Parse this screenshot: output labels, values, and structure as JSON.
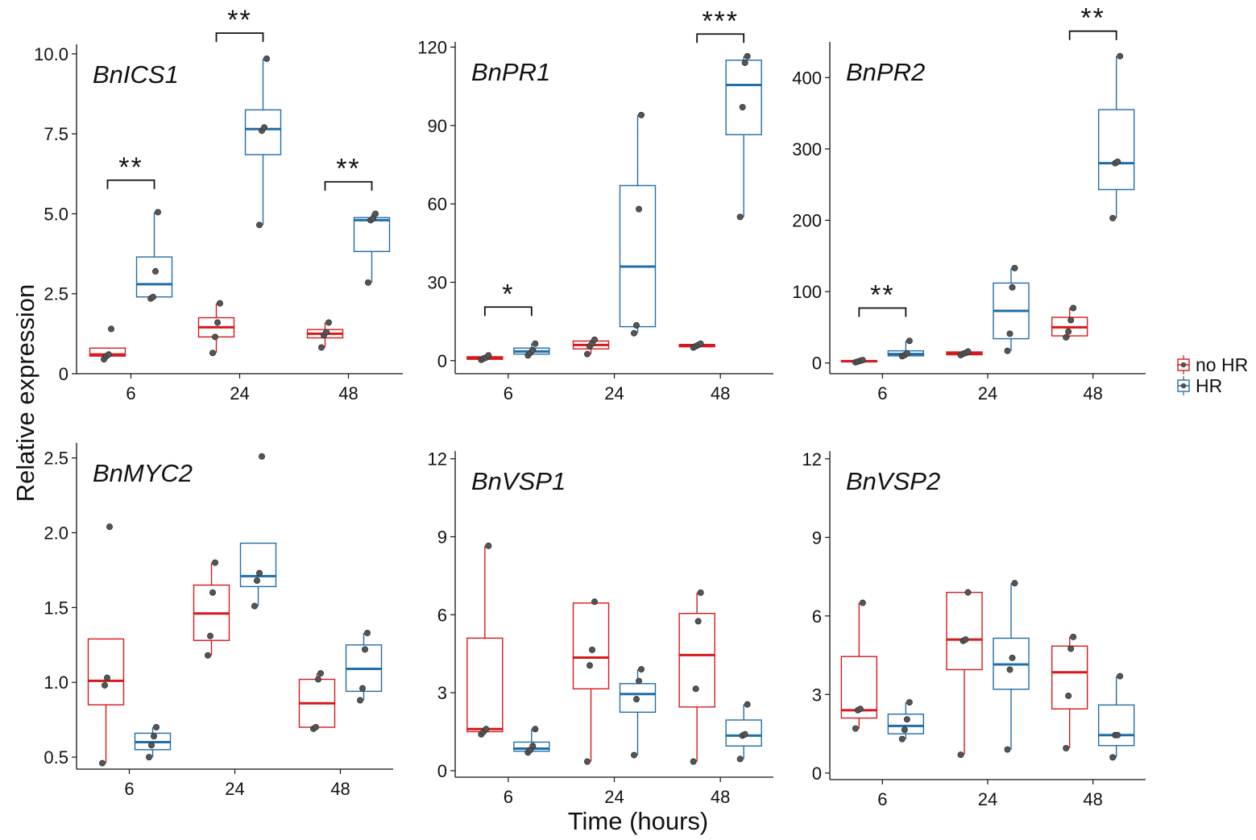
{
  "figure": {
    "ylabel": "Relative expression",
    "xlabel": "Time (hours)"
  },
  "colors": {
    "noHR": "#d7191c",
    "HR": "#1f6ea8",
    "point": "#555555"
  },
  "legend": {
    "items": [
      {
        "key": "noHR",
        "label": "no HR"
      },
      {
        "key": "HR",
        "label": "HR"
      }
    ]
  },
  "chart_data": [
    {
      "type": "box",
      "title": "BnICS1",
      "categories": [
        "6",
        "24",
        "48"
      ],
      "ylim": [
        0,
        10.3
      ],
      "yticks": [
        0,
        2.5,
        5.0,
        7.5,
        10.0
      ],
      "ytick_labels": [
        "0",
        "2.5",
        "5.0",
        "7.5",
        "10.0"
      ],
      "series": [
        {
          "name": "noHR",
          "boxes": [
            {
              "q1": 0.55,
              "median": 0.6,
              "q3": 0.8,
              "min": 0.45,
              "max": 0.8,
              "points": [
                0.45,
                0.55,
                0.6,
                1.4
              ]
            },
            {
              "q1": 1.15,
              "median": 1.45,
              "q3": 1.75,
              "min": 0.65,
              "max": 2.2,
              "points": [
                0.65,
                1.15,
                1.6,
                2.2
              ]
            },
            {
              "q1": 1.12,
              "median": 1.25,
              "q3": 1.38,
              "min": 0.82,
              "max": 1.6,
              "points": [
                0.82,
                1.2,
                1.3,
                1.6
              ]
            }
          ]
        },
        {
          "name": "HR",
          "boxes": [
            {
              "q1": 2.4,
              "median": 2.8,
              "q3": 3.65,
              "min": 2.35,
              "max": 5.05,
              "points": [
                2.35,
                2.4,
                3.2,
                5.05
              ]
            },
            {
              "q1": 6.85,
              "median": 7.65,
              "q3": 8.25,
              "min": 4.65,
              "max": 9.85,
              "points": [
                4.65,
                7.6,
                7.7,
                9.85
              ]
            },
            {
              "q1": 3.82,
              "median": 4.8,
              "q3": 4.88,
              "min": 2.85,
              "max": 5.0,
              "points": [
                2.85,
                4.8,
                4.85,
                5.0
              ]
            }
          ]
        }
      ],
      "significance": [
        {
          "category": "6",
          "label": "**",
          "y": 6.05
        },
        {
          "category": "24",
          "label": "**",
          "y": 10.65
        },
        {
          "category": "48",
          "label": "**",
          "y": 6.0
        }
      ]
    },
    {
      "type": "box",
      "title": "BnPR1",
      "categories": [
        "6",
        "24",
        "48"
      ],
      "ylim": [
        -5,
        122
      ],
      "yticks": [
        0,
        30,
        60,
        90,
        120
      ],
      "ytick_labels": [
        "0",
        "30",
        "60",
        "90",
        "120"
      ],
      "series": [
        {
          "name": "noHR",
          "boxes": [
            {
              "q1": 0.5,
              "median": 1.0,
              "q3": 1.5,
              "min": 0.3,
              "max": 2.0,
              "points": [
                0.3,
                0.8,
                1.2,
                2.0
              ]
            },
            {
              "q1": 4.5,
              "median": 6.0,
              "q3": 7.5,
              "min": 2.5,
              "max": 8.0,
              "points": [
                2.5,
                5.5,
                6.5,
                8.0
              ]
            },
            {
              "q1": 5.3,
              "median": 5.8,
              "q3": 6.2,
              "min": 5.0,
              "max": 6.5,
              "points": [
                5.0,
                5.5,
                6.0,
                6.5
              ]
            }
          ]
        },
        {
          "name": "HR",
          "boxes": [
            {
              "q1": 2.5,
              "median": 3.5,
              "q3": 4.8,
              "min": 2.0,
              "max": 6.5,
              "points": [
                2.0,
                3.0,
                4.0,
                6.5
              ]
            },
            {
              "q1": 13.0,
              "median": 36.0,
              "q3": 67.0,
              "min": 10.5,
              "max": 94.0,
              "points": [
                10.5,
                13.5,
                58.0,
                94.0
              ]
            },
            {
              "q1": 86.5,
              "median": 105.5,
              "q3": 115.0,
              "min": 55.0,
              "max": 116.5,
              "points": [
                55.0,
                97.0,
                114.0,
                116.5
              ]
            }
          ]
        }
      ],
      "significance": [
        {
          "category": "6",
          "label": "*",
          "y": 20.5
        },
        {
          "category": "48",
          "label": "***",
          "y": 125.0
        }
      ]
    },
    {
      "type": "box",
      "title": "BnPR2",
      "categories": [
        "6",
        "24",
        "48"
      ],
      "ylim": [
        -15,
        450
      ],
      "yticks": [
        0,
        100,
        200,
        300,
        400
      ],
      "ytick_labels": [
        "0",
        "100",
        "200",
        "300",
        "400"
      ],
      "series": [
        {
          "name": "noHR",
          "boxes": [
            {
              "q1": 1.5,
              "median": 2.5,
              "q3": 3.5,
              "min": 1.0,
              "max": 4.0,
              "points": [
                1.0,
                2.0,
                3.0,
                4.0
              ]
            },
            {
              "q1": 11.5,
              "median": 13.5,
              "q3": 15.5,
              "min": 11.0,
              "max": 16.0,
              "points": [
                11.0,
                13.0,
                14.0,
                16.0
              ]
            },
            {
              "q1": 38.0,
              "median": 50.0,
              "q3": 64.0,
              "min": 36.0,
              "max": 77.0,
              "points": [
                36.0,
                44.0,
                60.0,
                77.0
              ]
            }
          ]
        },
        {
          "name": "HR",
          "boxes": [
            {
              "q1": 10.0,
              "median": 12.5,
              "q3": 17.0,
              "min": 9.5,
              "max": 31.0,
              "points": [
                9.5,
                11.0,
                13.5,
                31.0
              ]
            },
            {
              "q1": 34.0,
              "median": 73.0,
              "q3": 112.0,
              "min": 17.0,
              "max": 133.0,
              "points": [
                17.0,
                41.0,
                106.0,
                133.0
              ]
            },
            {
              "q1": 243.0,
              "median": 280.0,
              "q3": 355.0,
              "min": 203.0,
              "max": 430.0,
              "points": [
                203.0,
                280.0,
                282.0,
                430.0
              ]
            }
          ]
        }
      ],
      "significance": [
        {
          "category": "6",
          "label": "**",
          "y": 77.0
        },
        {
          "category": "48",
          "label": "**",
          "y": 465.0
        }
      ]
    },
    {
      "type": "box",
      "title": "BnMYC2",
      "categories": [
        "6",
        "24",
        "48"
      ],
      "ylim": [
        0.42,
        2.6
      ],
      "yticks": [
        0.5,
        1.0,
        1.5,
        2.0,
        2.5
      ],
      "ytick_labels": [
        "0.5",
        "1.0",
        "1.5",
        "2.0",
        "2.5"
      ],
      "series": [
        {
          "name": "noHR",
          "boxes": [
            {
              "q1": 0.85,
              "median": 1.01,
              "q3": 1.29,
              "min": 0.46,
              "max": 1.29,
              "points": [
                0.46,
                0.98,
                1.03,
                2.04
              ]
            },
            {
              "q1": 1.28,
              "median": 1.46,
              "q3": 1.65,
              "min": 1.18,
              "max": 1.8,
              "points": [
                1.18,
                1.31,
                1.6,
                1.8
              ]
            },
            {
              "q1": 0.7,
              "median": 0.86,
              "q3": 1.02,
              "min": 0.69,
              "max": 1.06,
              "points": [
                0.69,
                0.7,
                1.02,
                1.06
              ]
            }
          ]
        },
        {
          "name": "HR",
          "boxes": [
            {
              "q1": 0.55,
              "median": 0.6,
              "q3": 0.66,
              "min": 0.5,
              "max": 0.7,
              "points": [
                0.5,
                0.58,
                0.64,
                0.7
              ]
            },
            {
              "q1": 1.64,
              "median": 1.71,
              "q3": 1.93,
              "min": 1.51,
              "max": 1.93,
              "points": [
                1.51,
                1.68,
                1.73,
                2.51
              ]
            },
            {
              "q1": 0.94,
              "median": 1.09,
              "q3": 1.25,
              "min": 0.88,
              "max": 1.33,
              "points": [
                0.88,
                0.96,
                1.22,
                1.33
              ]
            }
          ]
        }
      ],
      "significance": []
    },
    {
      "type": "box",
      "title": "BnVSP1",
      "categories": [
        "6",
        "24",
        "48"
      ],
      "ylim": [
        -0.25,
        12.3
      ],
      "yticks": [
        0,
        3,
        6,
        9,
        12
      ],
      "ytick_labels": [
        "0",
        "3",
        "6",
        "9",
        "12"
      ],
      "series": [
        {
          "name": "noHR",
          "boxes": [
            {
              "q1": 1.5,
              "median": 1.6,
              "q3": 5.1,
              "min": 1.4,
              "max": 8.65,
              "points": [
                1.4,
                1.5,
                1.6,
                8.65
              ]
            },
            {
              "q1": 3.15,
              "median": 4.35,
              "q3": 6.45,
              "min": 0.35,
              "max": 6.45,
              "points": [
                0.35,
                4.05,
                4.65,
                6.5
              ]
            },
            {
              "q1": 2.45,
              "median": 4.45,
              "q3": 6.05,
              "min": 0.35,
              "max": 6.85,
              "points": [
                0.35,
                3.15,
                5.75,
                6.85
              ]
            }
          ]
        },
        {
          "name": "HR",
          "boxes": [
            {
              "q1": 0.75,
              "median": 0.85,
              "q3": 1.1,
              "min": 0.7,
              "max": 1.6,
              "points": [
                0.7,
                0.8,
                0.95,
                1.6
              ]
            },
            {
              "q1": 2.25,
              "median": 2.95,
              "q3": 3.35,
              "min": 0.6,
              "max": 3.9,
              "points": [
                0.6,
                2.75,
                3.45,
                3.9
              ]
            },
            {
              "q1": 0.95,
              "median": 1.35,
              "q3": 1.95,
              "min": 0.45,
              "max": 2.55,
              "points": [
                0.45,
                1.35,
                1.4,
                2.55
              ]
            }
          ]
        }
      ],
      "significance": []
    },
    {
      "type": "box",
      "title": "BnVSP2",
      "categories": [
        "6",
        "24",
        "48"
      ],
      "ylim": [
        -0.25,
        12.3
      ],
      "yticks": [
        0,
        3,
        6,
        9,
        12
      ],
      "ytick_labels": [
        "0",
        "3",
        "6",
        "9",
        "12"
      ],
      "series": [
        {
          "name": "noHR",
          "boxes": [
            {
              "q1": 2.1,
              "median": 2.4,
              "q3": 4.45,
              "min": 1.7,
              "max": 6.5,
              "points": [
                1.7,
                2.4,
                2.45,
                6.5
              ]
            },
            {
              "q1": 3.95,
              "median": 5.1,
              "q3": 6.9,
              "min": 0.7,
              "max": 6.9,
              "points": [
                0.7,
                5.05,
                5.1,
                6.9
              ]
            },
            {
              "q1": 2.45,
              "median": 3.85,
              "q3": 4.85,
              "min": 0.95,
              "max": 5.2,
              "points": [
                0.95,
                2.95,
                4.75,
                5.2
              ]
            }
          ]
        },
        {
          "name": "HR",
          "boxes": [
            {
              "q1": 1.5,
              "median": 1.8,
              "q3": 2.25,
              "min": 1.3,
              "max": 2.7,
              "points": [
                1.3,
                1.65,
                2.05,
                2.7
              ]
            },
            {
              "q1": 3.2,
              "median": 4.15,
              "q3": 5.15,
              "min": 0.9,
              "max": 7.25,
              "points": [
                0.9,
                3.95,
                4.4,
                7.25
              ]
            },
            {
              "q1": 1.05,
              "median": 1.45,
              "q3": 2.6,
              "min": 0.6,
              "max": 3.7,
              "points": [
                0.6,
                1.45,
                1.45,
                3.7
              ]
            }
          ]
        }
      ],
      "significance": []
    }
  ]
}
